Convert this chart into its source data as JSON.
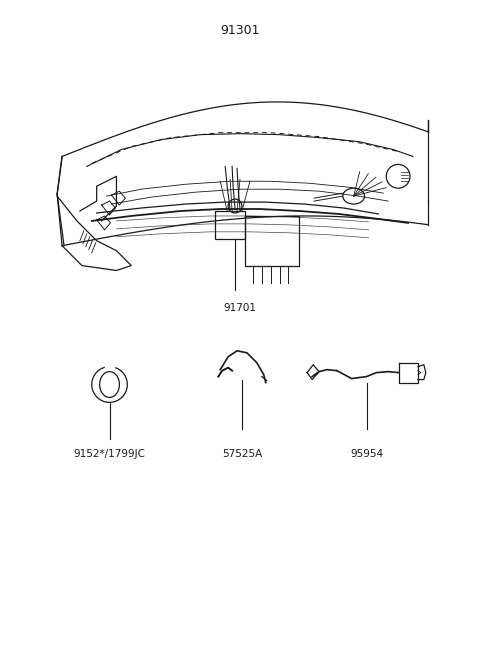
{
  "title": "91301",
  "bg_color": "#ffffff",
  "line_color": "#1a1a1a",
  "label_color": "#1a1a1a",
  "font_size_title": 9,
  "font_size_labels": 7.5,
  "labels": {
    "main_part": "91701",
    "part1": "9152*/1799JC",
    "part2": "57525A",
    "part3": "95954"
  }
}
